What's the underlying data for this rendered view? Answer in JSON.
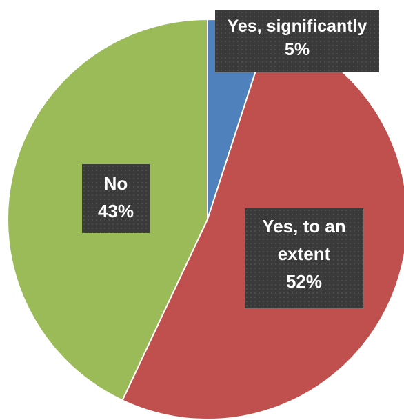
{
  "chart_data": {
    "type": "pie",
    "start_angle_deg": 0,
    "direction": "clockwise",
    "slices": [
      {
        "label_line1": "Yes, significantly",
        "label_line2": "",
        "percent_label": "5%",
        "value": 5,
        "color": "#4f81bd"
      },
      {
        "label_line1": "Yes, to an",
        "label_line2": "extent",
        "percent_label": "52%",
        "value": 52,
        "color": "#c0504d"
      },
      {
        "label_line1": "No",
        "label_line2": "",
        "percent_label": "43%",
        "value": 43,
        "color": "#9bbb59"
      }
    ],
    "label_box_color": "#3a3a3a",
    "slice_border_color": "#ffffff"
  }
}
